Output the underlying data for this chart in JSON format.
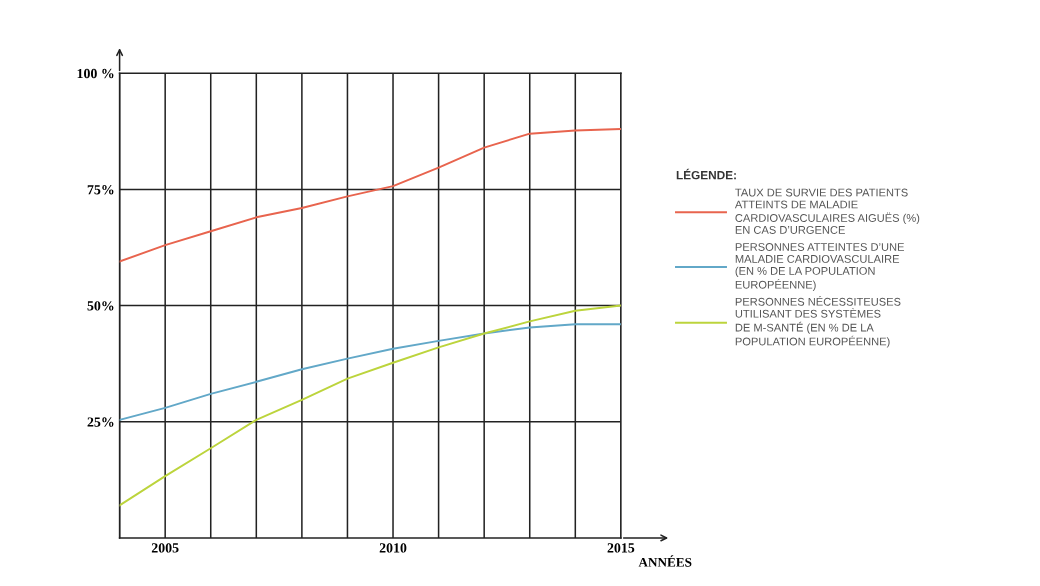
{
  "chart_data": {
    "type": "line",
    "xlabel": "ANNÉES",
    "legend_title": "LÉGENDE:",
    "legend": "right",
    "grid": true,
    "marker": "none",
    "line_style": "solid",
    "x": [
      2004,
      2005,
      2006,
      2007,
      2008,
      2009,
      2010,
      2011,
      2012,
      2013,
      2014,
      2015
    ],
    "xlim": [
      2004,
      2015
    ],
    "xticks": [
      {
        "value": 2004,
        "label": null
      },
      2005,
      {
        "value": 2006,
        "label": null
      },
      {
        "value": 2007,
        "label": null
      },
      {
        "value": 2008,
        "label": null
      },
      {
        "value": 2009,
        "label": null
      },
      2010,
      {
        "value": 2011,
        "label": null
      },
      {
        "value": 2012,
        "label": null
      },
      {
        "value": 2013,
        "label": null
      },
      {
        "value": 2014,
        "label": null
      },
      2015
    ],
    "ylim": [
      0,
      100
    ],
    "yticks": [
      {
        "value": 25,
        "label": "25%"
      },
      {
        "value": 50,
        "label": "50%"
      },
      {
        "value": 75,
        "label": "75%"
      },
      {
        "value": 100,
        "label": "100 %"
      }
    ],
    "series": [
      {
        "name": "TAUX DE SURVIE DES PATIENTS\nATTEINTS DE MALADIE\nCARDIOVASCULAIRES AIGUËS (%)\nEN CAS D’URGENCE",
        "color": "#e8644e",
        "values": [
          59.5,
          63,
          66,
          69,
          71,
          73.5,
          75.7,
          79.7,
          84,
          87,
          87.7,
          88
        ]
      },
      {
        "name": "PERSONNES ATTEINTES D’UNE\nMALADIE CARDIOVASCULAIRE\n(EN % DE LA POPULATION\nEUROPÉENNE)",
        "color": "#62a8c8",
        "values": [
          25.4,
          28,
          31,
          33.6,
          36.3,
          38.6,
          40.7,
          42.4,
          44,
          45.3,
          46,
          46
        ]
      },
      {
        "name": "PERSONNES NÉCESSITEUSES\nUTILISANT DES SYSTÈMES\nDE M-SANTÉ (EN % DE LA\nPOPULATION EUROPÉENNE)",
        "color": "#bcd43c",
        "values": [
          7,
          13.3,
          19.3,
          25.4,
          29.7,
          34.3,
          37.7,
          41,
          44,
          46.6,
          48.9,
          50
        ]
      }
    ]
  }
}
